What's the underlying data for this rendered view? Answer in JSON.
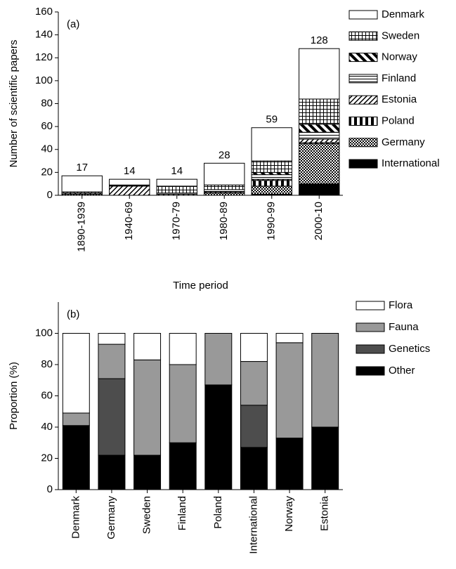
{
  "chart_data": [
    {
      "type": "bar",
      "stacked": true,
      "annotation": "(a)",
      "ylabel": "Number of scientific papers",
      "xlabel": "Time period",
      "categories": [
        "1890-1939",
        "1940-69",
        "1970-79",
        "1980-89",
        "1990-99",
        "2000-10"
      ],
      "totals": [
        17,
        14,
        14,
        28,
        59,
        128
      ],
      "ylim": [
        0,
        160
      ],
      "yticks": [
        0,
        20,
        40,
        60,
        80,
        100,
        120,
        140,
        160
      ],
      "series": [
        {
          "name": "International",
          "pattern": "black",
          "values": [
            0,
            0,
            0,
            0,
            1,
            10
          ]
        },
        {
          "name": "Germany",
          "pattern": "checker",
          "values": [
            1,
            0,
            0,
            2,
            7,
            35
          ]
        },
        {
          "name": "Poland",
          "pattern": "vlines",
          "values": [
            0,
            0,
            0,
            0,
            5,
            1
          ]
        },
        {
          "name": "Estonia",
          "pattern": "diagthin",
          "values": [
            1,
            8,
            1,
            1,
            1,
            3
          ]
        },
        {
          "name": "Finland",
          "pattern": "hlines",
          "values": [
            0,
            1,
            1,
            2,
            4,
            6
          ]
        },
        {
          "name": "Norway",
          "pattern": "diagthick",
          "values": [
            0,
            0,
            0,
            0,
            2,
            7
          ]
        },
        {
          "name": "Sweden",
          "pattern": "grid",
          "values": [
            1,
            0,
            6,
            4,
            10,
            22
          ]
        },
        {
          "name": "Denmark",
          "pattern": "white",
          "values": [
            14,
            5,
            6,
            19,
            29,
            44
          ]
        }
      ]
    },
    {
      "type": "bar",
      "stacked": true,
      "annotation": "(b)",
      "ylabel": "Proportion (%)",
      "categories": [
        "Denmark",
        "Germany",
        "Sweden",
        "Finland",
        "Poland",
        "International",
        "Norway",
        "Estonia"
      ],
      "ylim": [
        0,
        120
      ],
      "yticks": [
        0,
        20,
        40,
        60,
        80,
        100
      ],
      "series": [
        {
          "name": "Other",
          "color": "#000000",
          "values": [
            41,
            22,
            22,
            30,
            67,
            27,
            33,
            40
          ]
        },
        {
          "name": "Genetics",
          "color": "#4d4d4d",
          "values": [
            0,
            49,
            0,
            0,
            0,
            27,
            0,
            0
          ]
        },
        {
          "name": "Fauna",
          "color": "#999999",
          "values": [
            8,
            22,
            61,
            50,
            33,
            28,
            61,
            60
          ]
        },
        {
          "name": "Flora",
          "color": "#ffffff",
          "values": [
            51,
            7,
            17,
            20,
            0,
            18,
            6,
            0
          ]
        }
      ]
    }
  ]
}
